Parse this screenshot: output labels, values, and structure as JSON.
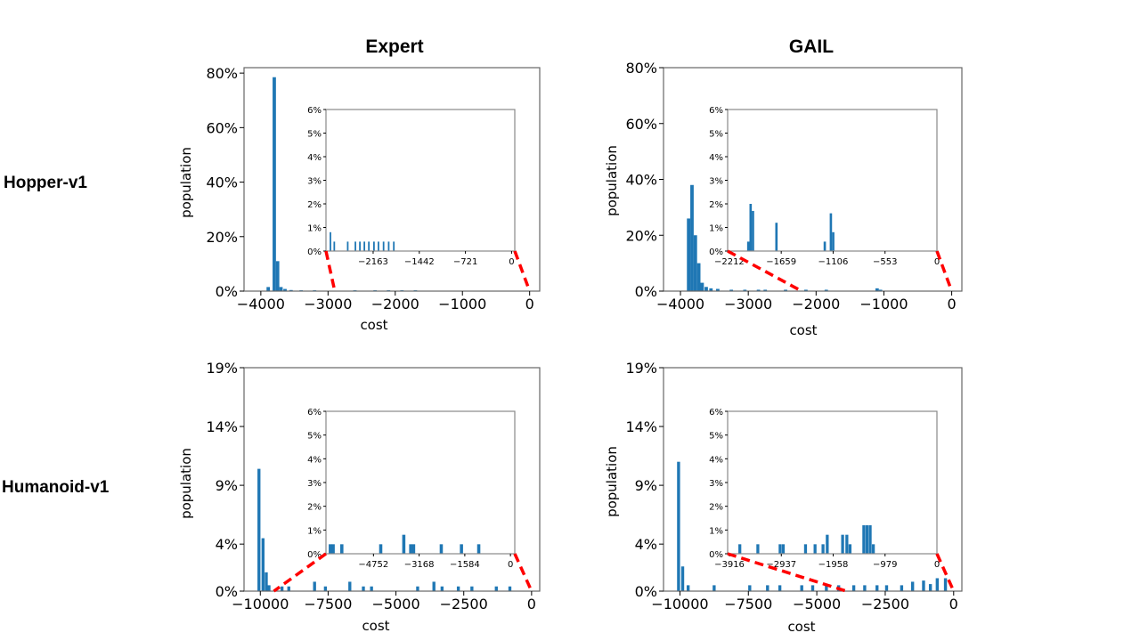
{
  "figure": {
    "col_titles": [
      "Expert",
      "GAIL"
    ],
    "row_labels": [
      "Hopper-v1",
      "Humanoid-v1"
    ]
  },
  "colors": {
    "bar": "#1f77b4",
    "zoom_line": "#ff0000",
    "axes": "#000000"
  },
  "chart_data": [
    {
      "type": "bar",
      "title": "Expert",
      "row": "Hopper-v1",
      "xlabel": "cost",
      "ylabel": "population",
      "xlim": [
        -4250,
        150
      ],
      "ylim": [
        0,
        82
      ],
      "xticks": [
        -4000,
        -3000,
        -2000,
        -1000,
        0
      ],
      "xtick_labels": [
        "−4000",
        "−3000",
        "−2000",
        "−1000",
        "0"
      ],
      "yticks": [
        0,
        20,
        40,
        60,
        80
      ],
      "ytick_labels": [
        "0%",
        "20%",
        "40%",
        "60%",
        "80%"
      ],
      "bar_width": 50,
      "bars": [
        [
          -3890,
          1.5
        ],
        [
          -3800,
          78.5
        ],
        [
          -3750,
          11
        ],
        [
          -3700,
          1.5
        ],
        [
          -3640,
          0.8
        ],
        [
          -3550,
          0.4
        ],
        [
          -3400,
          0.3
        ],
        [
          -3200,
          0.3
        ],
        [
          -2600,
          0.3
        ],
        [
          -2300,
          0.3
        ],
        [
          -2100,
          0.3
        ],
        [
          -1900,
          0.3
        ],
        [
          -1700,
          0.3
        ]
      ],
      "zoom_range": [
        -2900,
        0
      ],
      "inset": {
        "xlim": [
          -2900,
          50
        ],
        "ylim": [
          0,
          6
        ],
        "xticks": [
          -2163,
          -1442,
          -721,
          0
        ],
        "xtick_labels": [
          "−2163",
          "−1442",
          "−721",
          "0"
        ],
        "yticks": [
          0,
          1,
          2,
          3,
          4,
          5,
          6
        ],
        "ytick_labels": [
          "0%",
          "1%",
          "2%",
          "3%",
          "4%",
          "5%",
          "6%"
        ],
        "bar_width": 25,
        "bars": [
          [
            -2830,
            0.8
          ],
          [
            -2770,
            0.4
          ],
          [
            -2560,
            0.4
          ],
          [
            -2440,
            0.4
          ],
          [
            -2370,
            0.4
          ],
          [
            -2300,
            0.4
          ],
          [
            -2230,
            0.4
          ],
          [
            -2150,
            0.4
          ],
          [
            -2080,
            0.4
          ],
          [
            -2000,
            0.4
          ],
          [
            -1920,
            0.4
          ],
          [
            -1840,
            0.4
          ]
        ]
      }
    },
    {
      "type": "bar",
      "title": "GAIL",
      "row": "Hopper-v1",
      "xlabel": "cost",
      "ylabel": "population",
      "xlim": [
        -4250,
        150
      ],
      "ylim": [
        0,
        80
      ],
      "xticks": [
        -4000,
        -3000,
        -2000,
        -1000,
        0
      ],
      "xtick_labels": [
        "−4000",
        "−3000",
        "−2000",
        "−1000",
        "0"
      ],
      "yticks": [
        0,
        20,
        40,
        60,
        80
      ],
      "ytick_labels": [
        "0%",
        "20%",
        "40%",
        "60%",
        "80%"
      ],
      "bar_width": 50,
      "bars": [
        [
          -3880,
          26
        ],
        [
          -3830,
          38
        ],
        [
          -3780,
          20
        ],
        [
          -3730,
          10
        ],
        [
          -3680,
          3
        ],
        [
          -3620,
          1.5
        ],
        [
          -3550,
          1
        ],
        [
          -3450,
          0.8
        ],
        [
          -3250,
          0.5
        ],
        [
          -3050,
          0.5
        ],
        [
          -2850,
          0.5
        ],
        [
          -2750,
          0.5
        ],
        [
          -2450,
          0.5
        ],
        [
          -2150,
          0.5
        ],
        [
          -1850,
          0.5
        ],
        [
          -1100,
          1
        ],
        [
          -1050,
          0.5
        ]
      ],
      "zoom_range": [
        -2212,
        0
      ],
      "inset": {
        "xlim": [
          -2230,
          0
        ],
        "ylim": [
          0,
          6
        ],
        "xticks": [
          -2212,
          -1659,
          -1106,
          -553,
          0
        ],
        "xtick_labels": [
          "−2212",
          "−1659",
          "−1106",
          "−553",
          "0"
        ],
        "yticks": [
          0,
          1,
          2,
          3,
          4,
          5,
          6
        ],
        "ytick_labels": [
          "0%",
          "1%",
          "2%",
          "3%",
          "4%",
          "5%",
          "6%"
        ],
        "bar_width": 25,
        "bars": [
          [
            -2010,
            0.4
          ],
          [
            -1985,
            2.0
          ],
          [
            -1960,
            1.7
          ],
          [
            -1710,
            1.2
          ],
          [
            -1195,
            0.4
          ],
          [
            -1130,
            1.6
          ],
          [
            -1105,
            0.8
          ]
        ]
      }
    },
    {
      "type": "bar",
      "title": "Expert",
      "row": "Humanoid-v1",
      "xlabel": "cost",
      "ylabel": "population",
      "xlim": [
        -10600,
        300
      ],
      "ylim": [
        0,
        19
      ],
      "xticks": [
        -10000,
        -7500,
        -5000,
        -2500,
        0
      ],
      "xtick_labels": [
        "−10000",
        "−7500",
        "−5000",
        "−2500",
        "0"
      ],
      "yticks": [
        0,
        4,
        9,
        14,
        19
      ],
      "ytick_labels": [
        "0%",
        "4%",
        "9%",
        "14%",
        "19%"
      ],
      "bar_width": 110,
      "bars": [
        [
          -10050,
          10.4
        ],
        [
          -9900,
          4.5
        ],
        [
          -9780,
          1.6
        ],
        [
          -9680,
          0.5
        ],
        [
          -9200,
          0.4
        ],
        [
          -8950,
          0.4
        ],
        [
          -8000,
          0.8
        ],
        [
          -7600,
          0.4
        ],
        [
          -6700,
          0.8
        ],
        [
          -6200,
          0.4
        ],
        [
          -5900,
          0.4
        ],
        [
          -4200,
          0.4
        ],
        [
          -3600,
          0.8
        ],
        [
          -3300,
          0.4
        ],
        [
          -2700,
          0.4
        ],
        [
          -2200,
          0.4
        ],
        [
          -1300,
          0.4
        ],
        [
          -800,
          0.4
        ]
      ],
      "zoom_range": [
        -9500,
        0
      ],
      "inset": {
        "xlim": [
          -6400,
          150
        ],
        "ylim": [
          0,
          6
        ],
        "xticks": [
          -4752,
          -3168,
          -1584,
          0
        ],
        "xtick_labels": [
          "−4752",
          "−3168",
          "−1584",
          "0"
        ],
        "yticks": [
          0,
          1,
          2,
          3,
          4,
          5,
          6
        ],
        "ytick_labels": [
          "0%",
          "1%",
          "2%",
          "3%",
          "4%",
          "5%",
          "6%"
        ],
        "bar_width": 110,
        "bars": [
          [
            -6250,
            0.4
          ],
          [
            -6150,
            0.4
          ],
          [
            -5850,
            0.4
          ],
          [
            -4500,
            0.4
          ],
          [
            -3700,
            0.8
          ],
          [
            -3460,
            0.4
          ],
          [
            -3360,
            0.4
          ],
          [
            -2400,
            0.4
          ],
          [
            -1700,
            0.4
          ],
          [
            -1100,
            0.4
          ]
        ]
      }
    },
    {
      "type": "bar",
      "title": "GAIL",
      "row": "Humanoid-v1",
      "xlabel": "cost",
      "ylabel": "population",
      "xlim": [
        -10600,
        300
      ],
      "ylim": [
        0,
        19
      ],
      "xticks": [
        -10000,
        -7500,
        -5000,
        -2500,
        0
      ],
      "xtick_labels": [
        "−10000",
        "−7500",
        "−5000",
        "−2500",
        "0"
      ],
      "yticks": [
        0,
        4,
        9,
        14,
        19
      ],
      "ytick_labels": [
        "0%",
        "4%",
        "9%",
        "14%",
        "19%"
      ],
      "bar_width": 110,
      "bars": [
        [
          -10050,
          11
        ],
        [
          -9900,
          2.1
        ],
        [
          -9700,
          0.5
        ],
        [
          -8750,
          0.5
        ],
        [
          -7450,
          0.5
        ],
        [
          -6800,
          0.5
        ],
        [
          -6350,
          0.5
        ],
        [
          -5550,
          0.5
        ],
        [
          -5150,
          0.5
        ],
        [
          -4650,
          0.5
        ],
        [
          -4200,
          0.5
        ],
        [
          -3650,
          0.5
        ],
        [
          -3250,
          0.5
        ],
        [
          -2800,
          0.5
        ],
        [
          -2450,
          0.5
        ],
        [
          -1900,
          0.5
        ],
        [
          -1500,
          0.8
        ],
        [
          -1100,
          0.9
        ],
        [
          -850,
          0.6
        ],
        [
          -600,
          1.1
        ],
        [
          -300,
          1.1
        ]
      ],
      "zoom_range": [
        -3916,
        0
      ],
      "inset": {
        "xlim": [
          -3950,
          0
        ],
        "ylim": [
          0,
          6
        ],
        "xticks": [
          -3916,
          -2937,
          -1958,
          -979,
          0
        ],
        "xtick_labels": [
          "−3916",
          "−2937",
          "−1958",
          "−979",
          "0"
        ],
        "yticks": [
          0,
          1,
          2,
          3,
          4,
          5,
          6
        ],
        "ytick_labels": [
          "0%",
          "1%",
          "2%",
          "3%",
          "4%",
          "5%",
          "6%"
        ],
        "bar_width": 55,
        "bars": [
          [
            -3720,
            0.4
          ],
          [
            -3380,
            0.4
          ],
          [
            -2960,
            0.4
          ],
          [
            -2900,
            0.4
          ],
          [
            -2480,
            0.4
          ],
          [
            -2300,
            0.4
          ],
          [
            -2150,
            0.4
          ],
          [
            -2070,
            0.8
          ],
          [
            -1780,
            0.8
          ],
          [
            -1700,
            0.8
          ],
          [
            -1640,
            0.4
          ],
          [
            -1380,
            1.2
          ],
          [
            -1320,
            1.2
          ],
          [
            -1260,
            1.2
          ],
          [
            -1200,
            0.4
          ]
        ]
      }
    }
  ]
}
